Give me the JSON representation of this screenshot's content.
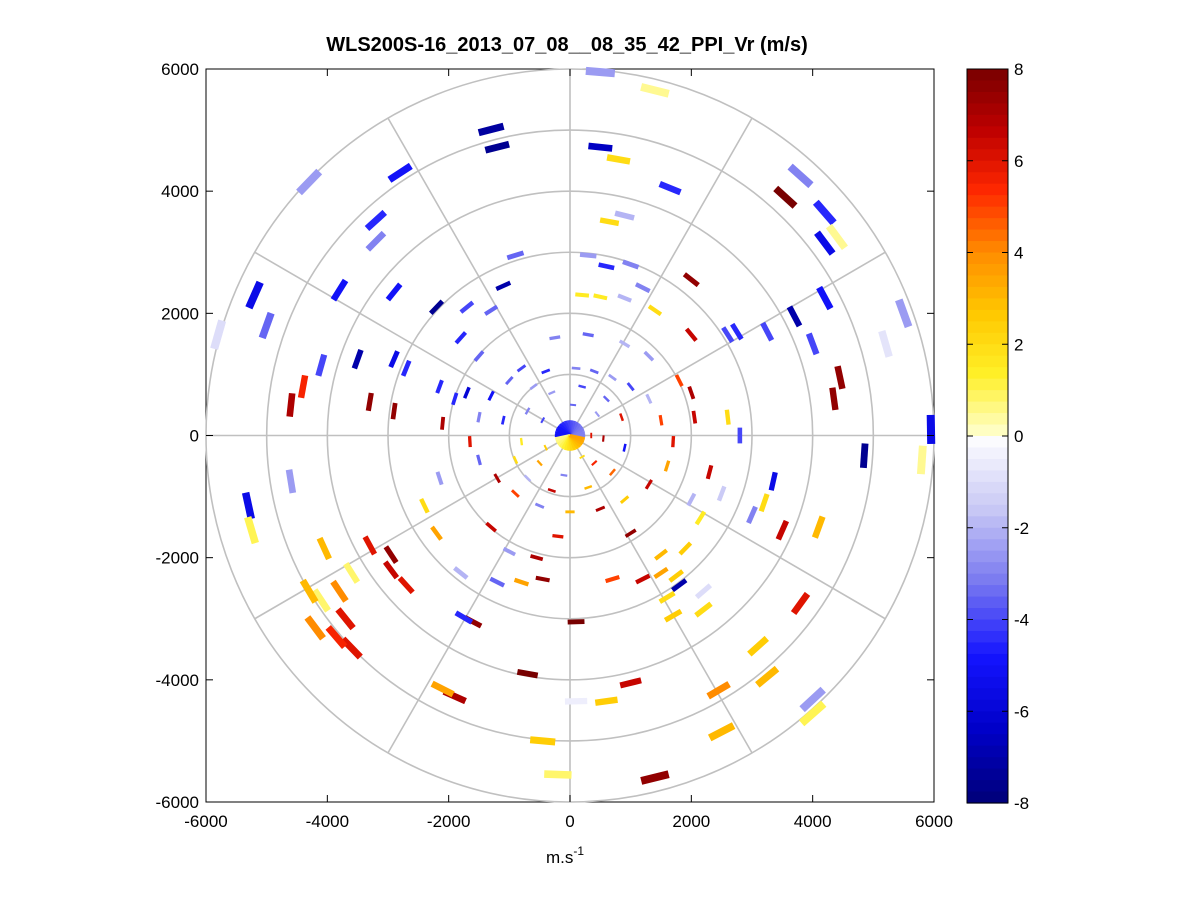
{
  "chart_data": {
    "type": "ppi-polar-scatter",
    "title": "WLS200S-16_2013_07_08__08_35_42_PPI_Vr (m/s)",
    "xlabel_base": "m.s",
    "xlabel_sup": "-1",
    "ylabel": "",
    "xlim": [
      -6000,
      6000
    ],
    "ylim": [
      -6000,
      6000
    ],
    "x_ticks": [
      "-6000",
      "-4000",
      "-2000",
      "0",
      "2000",
      "4000",
      "6000"
    ],
    "y_ticks": [
      "6000",
      "4000",
      "2000",
      "0",
      "-2000",
      "-4000",
      "-6000"
    ],
    "polar_grid": {
      "rings": [
        1000,
        2000,
        3000,
        4000,
        5000,
        6000
      ],
      "spoke_angles_deg": [
        0,
        30,
        60,
        90,
        120,
        150,
        180,
        210,
        240,
        270,
        300,
        330
      ],
      "color": "#c0c0c0"
    },
    "colorbar": {
      "range": [
        -8,
        8
      ],
      "tick_labels": [
        "8",
        "6",
        "4",
        "2",
        "0",
        "-2",
        "-4",
        "-6",
        "-8"
      ],
      "levels": 64
    },
    "series": [
      {
        "points": [
          {
            "x": -1300,
            "y": 5010,
            "v": -7.2
          },
          {
            "x": -1200,
            "y": 4720,
            "v": -7.5
          },
          {
            "x": -2800,
            "y": 4300,
            "v": -5.0
          },
          {
            "x": -4300,
            "y": 4150,
            "v": -2.5
          },
          {
            "x": -3200,
            "y": 3180,
            "v": -3.0
          },
          {
            "x": -3200,
            "y": 3520,
            "v": -4.5
          },
          {
            "x": -3800,
            "y": 2380,
            "v": -5.0
          },
          {
            "x": -5200,
            "y": 2300,
            "v": -5.5
          },
          {
            "x": -5000,
            "y": 1800,
            "v": -3.5
          },
          {
            "x": -5800,
            "y": 1650,
            "v": -1.0
          },
          {
            "x": -4100,
            "y": 1150,
            "v": -4.0
          },
          {
            "x": -3500,
            "y": 1250,
            "v": -7.0
          },
          {
            "x": -2900,
            "y": 1250,
            "v": -5.5
          },
          {
            "x": -2700,
            "y": 1100,
            "v": -4.5
          },
          {
            "x": -2900,
            "y": 2350,
            "v": -5.0
          },
          {
            "x": -2200,
            "y": 2100,
            "v": -7.5
          },
          {
            "x": -1700,
            "y": 2100,
            "v": -4.0
          },
          {
            "x": -1300,
            "y": 2050,
            "v": -3.5
          },
          {
            "x": -1100,
            "y": 2450,
            "v": -7.0
          },
          {
            "x": -900,
            "y": 2950,
            "v": -3.5
          },
          {
            "x": -1800,
            "y": 1600,
            "v": -4.5
          },
          {
            "x": 500,
            "y": 5950,
            "v": -2.5
          },
          {
            "x": 1400,
            "y": 5650,
            "v": 0.5
          },
          {
            "x": 500,
            "y": 4720,
            "v": -6.5
          },
          {
            "x": 800,
            "y": 4520,
            "v": 2.0
          },
          {
            "x": 1650,
            "y": 4050,
            "v": -4.5
          },
          {
            "x": 3550,
            "y": 3900,
            "v": 8.0
          },
          {
            "x": 3800,
            "y": 4250,
            "v": -3.0
          },
          {
            "x": 4200,
            "y": 3650,
            "v": -4.5
          },
          {
            "x": 4400,
            "y": 3250,
            "v": 0.5
          },
          {
            "x": 4200,
            "y": 3150,
            "v": -5.5
          },
          {
            "x": 900,
            "y": 3600,
            "v": -2.0
          },
          {
            "x": 650,
            "y": 3500,
            "v": 2.0
          },
          {
            "x": 300,
            "y": 2950,
            "v": -2.5
          },
          {
            "x": 600,
            "y": 2770,
            "v": -4.5
          },
          {
            "x": 1000,
            "y": 2800,
            "v": -3.0
          },
          {
            "x": 2000,
            "y": 2550,
            "v": 7.5
          },
          {
            "x": 1200,
            "y": 2420,
            "v": -3.0
          },
          {
            "x": 200,
            "y": 2300,
            "v": 1.5
          },
          {
            "x": 500,
            "y": 2270,
            "v": 1.5
          },
          {
            "x": 900,
            "y": 2250,
            "v": -2.0
          },
          {
            "x": 1400,
            "y": 2050,
            "v": 2.0
          },
          {
            "x": 2600,
            "y": 1650,
            "v": -4.0
          },
          {
            "x": 2750,
            "y": 1700,
            "v": -4.5
          },
          {
            "x": 3250,
            "y": 1700,
            "v": -4.0
          },
          {
            "x": 3700,
            "y": 1950,
            "v": -7.0
          },
          {
            "x": 4200,
            "y": 2250,
            "v": -5.0
          },
          {
            "x": 5500,
            "y": 2000,
            "v": -2.5
          },
          {
            "x": 5200,
            "y": 1500,
            "v": -0.8
          },
          {
            "x": 4000,
            "y": 1500,
            "v": -4.0
          },
          {
            "x": 4450,
            "y": 950,
            "v": 7.5
          },
          {
            "x": 4350,
            "y": 600,
            "v": 7.5
          },
          {
            "x": 2000,
            "y": 1650,
            "v": 6.5
          },
          {
            "x": 1800,
            "y": 900,
            "v": 5.0
          },
          {
            "x": 2050,
            "y": 300,
            "v": 6.5
          },
          {
            "x": 2600,
            "y": 300,
            "v": 2.0
          },
          {
            "x": 2800,
            "y": 0,
            "v": -4.0
          },
          {
            "x": 5950,
            "y": 100,
            "v": -5.5
          },
          {
            "x": 4850,
            "y": -330,
            "v": -7.5
          },
          {
            "x": 5800,
            "y": -400,
            "v": 0.5
          },
          {
            "x": 3350,
            "y": -750,
            "v": -5.5
          },
          {
            "x": 3200,
            "y": -1100,
            "v": 2.0
          },
          {
            "x": 3000,
            "y": -1300,
            "v": -3.0
          },
          {
            "x": 3500,
            "y": -1550,
            "v": 6.5
          },
          {
            "x": 4100,
            "y": -1500,
            "v": 3.0
          },
          {
            "x": 2500,
            "y": -950,
            "v": -1.5
          },
          {
            "x": 2150,
            "y": -1350,
            "v": 1.5
          },
          {
            "x": 1900,
            "y": -1850,
            "v": 2.5
          },
          {
            "x": 1500,
            "y": -1950,
            "v": 3.0
          },
          {
            "x": 1750,
            "y": -2300,
            "v": 2.5
          },
          {
            "x": 1200,
            "y": -2350,
            "v": 6.5
          },
          {
            "x": 1500,
            "y": -2250,
            "v": 3.5
          },
          {
            "x": 700,
            "y": -2350,
            "v": 5.0
          },
          {
            "x": 1800,
            "y": -2450,
            "v": -7.0
          },
          {
            "x": 2200,
            "y": -2550,
            "v": -1.0
          },
          {
            "x": 1600,
            "y": -2650,
            "v": 2.0
          },
          {
            "x": 2200,
            "y": -2850,
            "v": 2.0
          },
          {
            "x": 1700,
            "y": -2950,
            "v": 2.5
          },
          {
            "x": 3800,
            "y": -2750,
            "v": 6.0
          },
          {
            "x": 3100,
            "y": -3450,
            "v": 2.5
          },
          {
            "x": 3250,
            "y": -3950,
            "v": 3.0
          },
          {
            "x": 4000,
            "y": -4320,
            "v": -2.5
          },
          {
            "x": 4000,
            "y": -4550,
            "v": 1.0
          },
          {
            "x": 2450,
            "y": -4170,
            "v": 4.0
          },
          {
            "x": 2500,
            "y": -4850,
            "v": 3.0
          },
          {
            "x": 1000,
            "y": -4050,
            "v": 6.5
          },
          {
            "x": 600,
            "y": -4350,
            "v": 2.5
          },
          {
            "x": 100,
            "y": -4350,
            "v": -0.5
          },
          {
            "x": 1400,
            "y": -5600,
            "v": 7.5
          },
          {
            "x": -450,
            "y": -5000,
            "v": 2.5
          },
          {
            "x": -200,
            "y": -5550,
            "v": 0.8
          },
          {
            "x": -700,
            "y": -3900,
            "v": 8.0
          },
          {
            "x": -1900,
            "y": -4270,
            "v": 7.0
          },
          {
            "x": -2100,
            "y": -4150,
            "v": 3.5
          },
          {
            "x": -1600,
            "y": -3050,
            "v": 7.5
          },
          {
            "x": -1750,
            "y": -2980,
            "v": -4.5
          },
          {
            "x": 100,
            "y": -3050,
            "v": 8.0
          },
          {
            "x": -3600,
            "y": -3480,
            "v": 6.0
          },
          {
            "x": -3850,
            "y": -3300,
            "v": 5.5
          },
          {
            "x": -4200,
            "y": -3150,
            "v": 4.0
          },
          {
            "x": -3700,
            "y": -3000,
            "v": 6.0
          },
          {
            "x": -4100,
            "y": -2700,
            "v": 0.8
          },
          {
            "x": -4300,
            "y": -2550,
            "v": 3.0
          },
          {
            "x": -3800,
            "y": -2550,
            "v": 4.0
          },
          {
            "x": -3600,
            "y": -2250,
            "v": 0.8
          },
          {
            "x": -4050,
            "y": -1850,
            "v": 3.0
          },
          {
            "x": -3300,
            "y": -1800,
            "v": 6.0
          },
          {
            "x": -2700,
            "y": -2450,
            "v": 6.0
          },
          {
            "x": -2950,
            "y": -2200,
            "v": 6.5
          },
          {
            "x": -2950,
            "y": -1950,
            "v": 7.5
          },
          {
            "x": -2200,
            "y": -1600,
            "v": 3.5
          },
          {
            "x": -2400,
            "y": -1150,
            "v": 2.0
          },
          {
            "x": -1800,
            "y": -2250,
            "v": -2.0
          },
          {
            "x": -1200,
            "y": -2400,
            "v": -3.5
          },
          {
            "x": -800,
            "y": -2400,
            "v": 3.5
          },
          {
            "x": -450,
            "y": -2350,
            "v": 7.5
          },
          {
            "x": -550,
            "y": -2000,
            "v": 7.0
          },
          {
            "x": -1000,
            "y": -1900,
            "v": -2.5
          },
          {
            "x": -5300,
            "y": -1150,
            "v": -5.5
          },
          {
            "x": -5250,
            "y": -1550,
            "v": 1.0
          },
          {
            "x": -4600,
            "y": -750,
            "v": -2.5
          },
          {
            "x": -4600,
            "y": 500,
            "v": 7.0
          },
          {
            "x": -4400,
            "y": 800,
            "v": 5.5
          },
          {
            "x": -3300,
            "y": 550,
            "v": 7.5
          },
          {
            "x": -2900,
            "y": 400,
            "v": 7.5
          },
          {
            "x": -2100,
            "y": 200,
            "v": 7.0
          },
          {
            "x": -1900,
            "y": 600,
            "v": -4.5
          },
          {
            "x": -1700,
            "y": 700,
            "v": -6.0
          },
          {
            "x": -1500,
            "y": 300,
            "v": -3.0
          },
          {
            "x": -1300,
            "y": 650,
            "v": -5.0
          },
          {
            "x": -1000,
            "y": 900,
            "v": -3.5
          },
          {
            "x": -800,
            "y": 1100,
            "v": -4.0
          },
          {
            "x": -600,
            "y": 800,
            "v": -2.5
          },
          {
            "x": -400,
            "y": 1050,
            "v": -4.5
          },
          {
            "x": 100,
            "y": 1100,
            "v": -3.0
          },
          {
            "x": 400,
            "y": 1050,
            "v": -3.5
          },
          {
            "x": 700,
            "y": 950,
            "v": -2.5
          },
          {
            "x": 1000,
            "y": 800,
            "v": -4.0
          },
          {
            "x": 1300,
            "y": 600,
            "v": -2.0
          },
          {
            "x": 1500,
            "y": 250,
            "v": 5.0
          },
          {
            "x": 1700,
            "y": -100,
            "v": 6.0
          },
          {
            "x": 1600,
            "y": -500,
            "v": 3.5
          },
          {
            "x": 1300,
            "y": -800,
            "v": 6.5
          },
          {
            "x": 900,
            "y": -1050,
            "v": 2.5
          },
          {
            "x": 500,
            "y": -1200,
            "v": 7.0
          },
          {
            "x": 0,
            "y": -1250,
            "v": 3.0
          },
          {
            "x": -500,
            "y": -1150,
            "v": -3.0
          },
          {
            "x": -900,
            "y": -950,
            "v": 5.0
          },
          {
            "x": -1200,
            "y": -700,
            "v": 7.0
          },
          {
            "x": -1500,
            "y": -400,
            "v": -3.5
          },
          {
            "x": -1650,
            "y": -100,
            "v": 6.0
          },
          {
            "x": -1100,
            "y": 250,
            "v": -4.5
          },
          {
            "x": -900,
            "y": -400,
            "v": 2.0
          },
          {
            "x": -700,
            "y": -700,
            "v": -2.0
          },
          {
            "x": -300,
            "y": -900,
            "v": 6.5
          },
          {
            "x": 300,
            "y": -850,
            "v": 3.0
          },
          {
            "x": 700,
            "y": -600,
            "v": 4.5
          },
          {
            "x": 900,
            "y": -200,
            "v": -5.0
          },
          {
            "x": 850,
            "y": 300,
            "v": 6.0
          },
          {
            "x": 600,
            "y": 600,
            "v": -3.5
          },
          {
            "x": 200,
            "y": 800,
            "v": -4.0
          },
          {
            "x": -300,
            "y": 700,
            "v": -2.5
          },
          {
            "x": -700,
            "y": 400,
            "v": -3.0
          },
          {
            "x": -800,
            "y": -100,
            "v": 1.5
          },
          {
            "x": -500,
            "y": -450,
            "v": 3.5
          },
          {
            "x": -100,
            "y": -650,
            "v": -3.0
          },
          {
            "x": 400,
            "y": -450,
            "v": 5.5
          },
          {
            "x": 550,
            "y": -50,
            "v": 7.0
          },
          {
            "x": 450,
            "y": 350,
            "v": -2.5
          },
          {
            "x": 50,
            "y": 500,
            "v": -3.5
          },
          {
            "x": -450,
            "y": 250,
            "v": -4.0
          },
          {
            "x": -400,
            "y": -200,
            "v": 2.5
          },
          {
            "x": 200,
            "y": -350,
            "v": 2.0
          },
          {
            "x": 350,
            "y": 0,
            "v": 6.0
          },
          {
            "x": -250,
            "y": 1600,
            "v": -3.0
          },
          {
            "x": 300,
            "y": 1650,
            "v": -3.5
          },
          {
            "x": 1300,
            "y": 1300,
            "v": -2.5
          },
          {
            "x": 900,
            "y": 1500,
            "v": -2.0
          },
          {
            "x": -1500,
            "y": 1300,
            "v": -3.5
          },
          {
            "x": 2300,
            "y": -600,
            "v": 6.5
          },
          {
            "x": 2000,
            "y": 700,
            "v": 7.0
          },
          {
            "x": -2150,
            "y": -700,
            "v": -2.5
          },
          {
            "x": -2150,
            "y": 800,
            "v": -4.5
          },
          {
            "x": 2000,
            "y": -1050,
            "v": -2.0
          },
          {
            "x": -200,
            "y": -1650,
            "v": 6.0
          },
          {
            "x": 1000,
            "y": -1600,
            "v": 7.5
          },
          {
            "x": -1300,
            "y": -1500,
            "v": 6.5
          }
        ]
      }
    ]
  }
}
